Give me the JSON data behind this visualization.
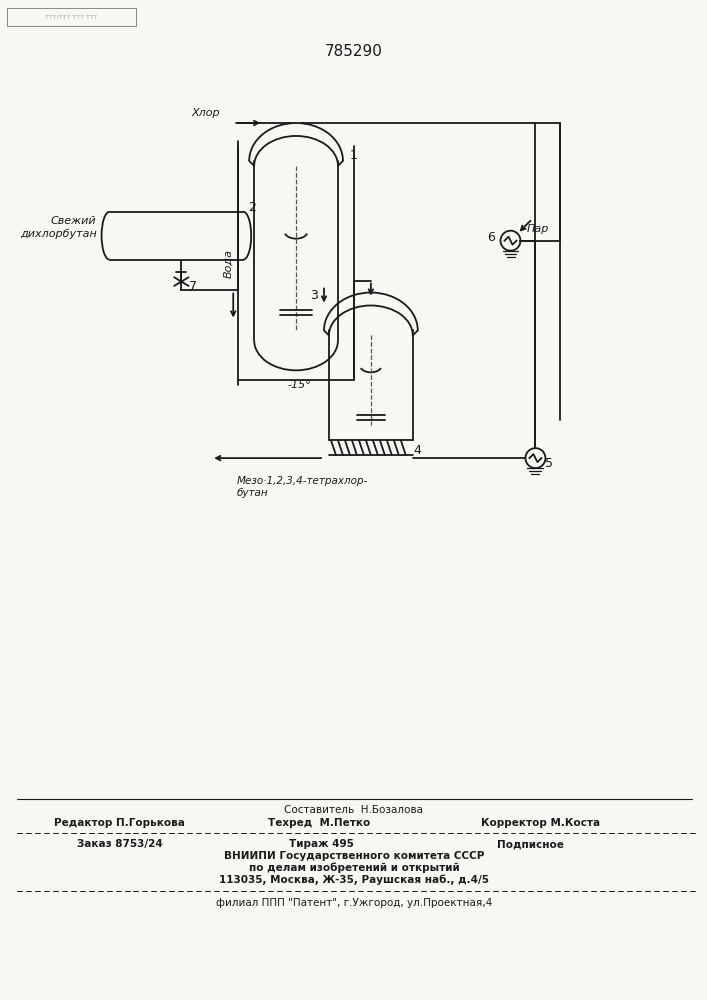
{
  "patent_number": "785290",
  "bg_color": "#f7f7f4",
  "line_color": "#1a1a1a",
  "footer_line1": "Составитель  Н.Бозалова",
  "footer_line2_left": "Редактор П.Горькова",
  "footer_line2_mid": "Техред  М.Петко",
  "footer_line2_right": "Корректор М.Коста",
  "footer_line3_left": "Заказ 8753/24",
  "footer_line3_mid": "Тираж 495",
  "footer_line3_right": "Подписное",
  "footer_line4": "ВНИИПИ Государственного комитета СССР",
  "footer_line5": "по делам изобретений и открытий",
  "footer_line6": "113035, Москва, Ж-35, Раушская наб., д.4/5",
  "footer_line7": "филиал ППП \"Патент\", г.Ужгород, ул.Проектная,4"
}
